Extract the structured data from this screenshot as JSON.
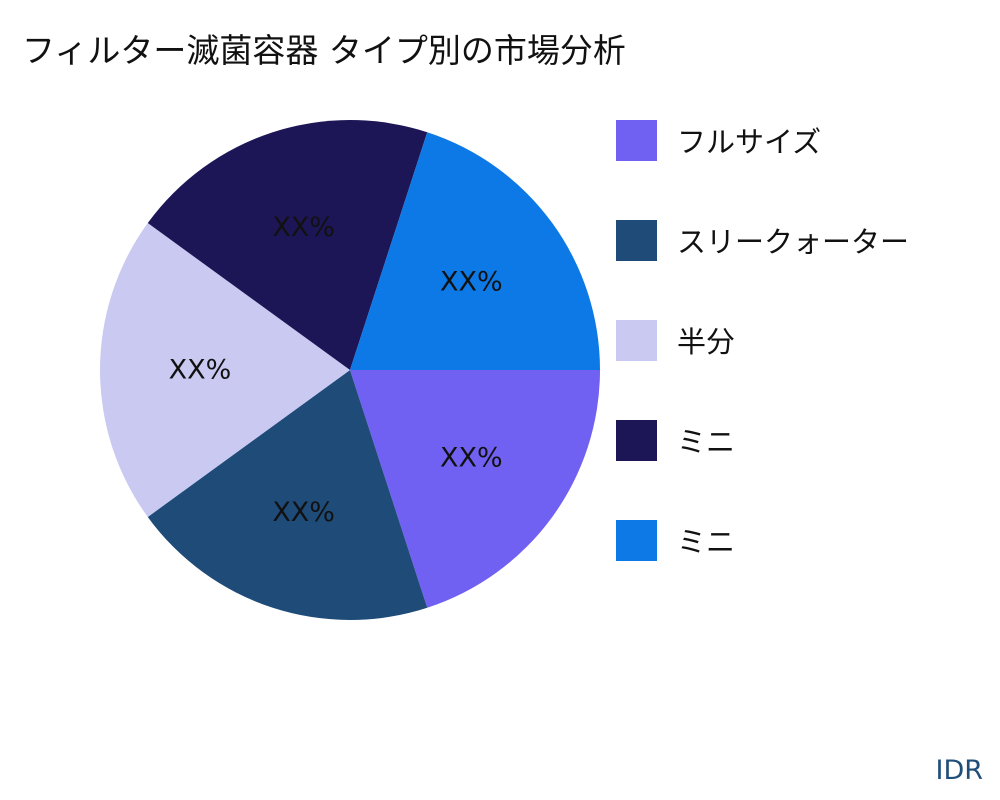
{
  "chart_data": {
    "type": "pie",
    "title": "フィルター滅菌容器 タイプ別の市場分析",
    "series": [
      {
        "name": "フルサイズ",
        "value": 20,
        "label": "XX%",
        "color": "#7161f3"
      },
      {
        "name": "スリークォーター",
        "value": 20,
        "label": "XX%",
        "color": "#1f4b79"
      },
      {
        "name": "半分",
        "value": 20,
        "label": "XX%",
        "color": "#c9c9f1"
      },
      {
        "name": "ミニ",
        "value": 20,
        "label": "XX%",
        "color": "#1c1656"
      },
      {
        "name": "ミニ",
        "value": 20,
        "label": "XX%",
        "color": "#0c79e6"
      }
    ],
    "legend_position": "right"
  },
  "brand": "IDR"
}
